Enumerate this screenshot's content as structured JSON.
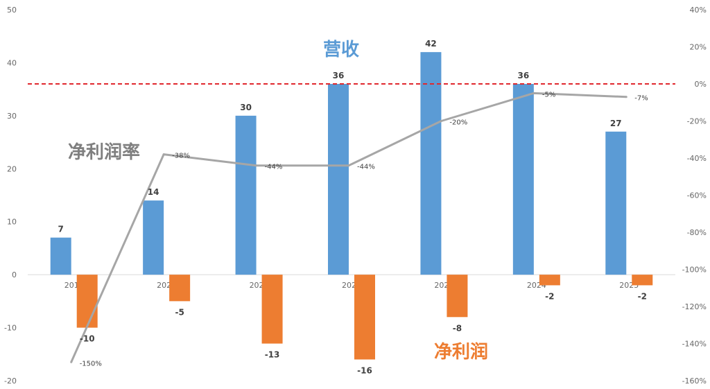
{
  "chart_data": {
    "type": "bar",
    "categories": [
      "2019",
      "2020",
      "2021",
      "2022",
      "2023",
      "2024",
      "2025"
    ],
    "series": [
      {
        "name": "营收",
        "kind": "bar",
        "axis": "left",
        "color": "#5B9BD5",
        "values": [
          7,
          14,
          30,
          36,
          42,
          36,
          27
        ],
        "labels": [
          "7",
          "14",
          "30",
          "36",
          "42",
          "36",
          "27"
        ]
      },
      {
        "name": "净利润",
        "kind": "bar",
        "axis": "left",
        "color": "#ED7D31",
        "values": [
          -10,
          -5,
          -13,
          -16,
          -8,
          -2,
          -2
        ],
        "labels": [
          "-10",
          "-5",
          "-13",
          "-16",
          "-8",
          "-2",
          "-2"
        ]
      },
      {
        "name": "净利润率",
        "kind": "line",
        "axis": "right",
        "color": "#A6A6A6",
        "values": [
          -150,
          -38,
          -44,
          -44,
          -20,
          -5,
          -7
        ],
        "labels": [
          "-150%",
          "-38%",
          "-44%",
          "-44%",
          "-20%",
          "-5%",
          "-7%"
        ]
      }
    ],
    "left_axis": {
      "min": -20,
      "max": 50,
      "step": 10,
      "ticks": [
        "50",
        "40",
        "30",
        "20",
        "10",
        "0",
        "-10",
        "-20"
      ]
    },
    "right_axis": {
      "min": -160,
      "max": 40,
      "step": 20,
      "ticks": [
        "40%",
        "20%",
        "0%",
        "-20%",
        "-40%",
        "-60%",
        "-80%",
        "-100%",
        "-120%",
        "-140%",
        "-160%"
      ]
    },
    "reference_line": {
      "axis": "right",
      "value": 0,
      "color": "#E0282E",
      "style": "dashed"
    },
    "annotations": {
      "revenue": {
        "text": "营收",
        "color": "#5B9BD5"
      },
      "margin": {
        "text": "净利润率",
        "color": "#7F7F7F"
      },
      "profit": {
        "text": "净利润",
        "color": "#ED7D31"
      }
    },
    "grid": false,
    "legend": "none"
  }
}
